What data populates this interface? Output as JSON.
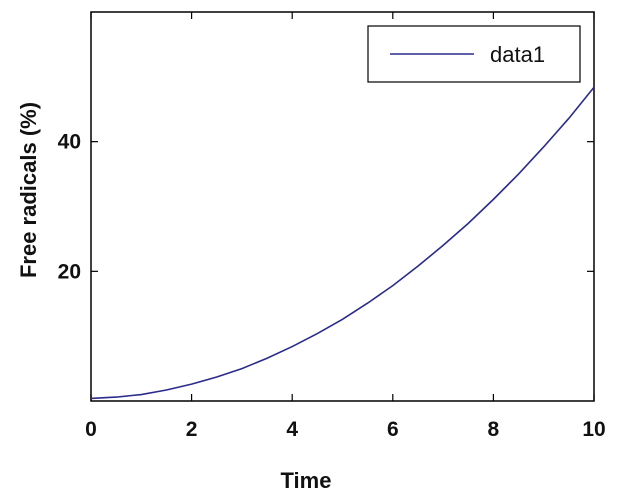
{
  "chart_data": {
    "type": "line",
    "title": "",
    "xlabel": "Time",
    "ylabel": "Free radicals (%)",
    "xlim": [
      0,
      10
    ],
    "ylim": [
      0,
      60
    ],
    "xticks": [
      0,
      2,
      4,
      6,
      8,
      10
    ],
    "xtick_labels": [
      "0",
      "2",
      "4",
      "6",
      "8",
      "10"
    ],
    "yticks": [
      20,
      40
    ],
    "ytick_labels": [
      "20",
      "40"
    ],
    "grid": false,
    "legend_position": "top-right",
    "series": [
      {
        "name": "data1",
        "color": "#2b2b8c",
        "x": [
          0,
          0.5,
          1,
          1.5,
          2,
          2.5,
          3,
          3.5,
          4,
          4.5,
          5,
          5.5,
          6,
          6.5,
          7,
          7.5,
          8,
          8.5,
          9,
          9.5,
          10
        ],
        "y": [
          0.4,
          0.6,
          1.0,
          1.7,
          2.6,
          3.7,
          5.0,
          6.6,
          8.4,
          10.4,
          12.6,
          15.1,
          17.8,
          20.8,
          24.0,
          27.4,
          31.1,
          35.0,
          39.2,
          43.6,
          48.4
        ]
      }
    ]
  }
}
